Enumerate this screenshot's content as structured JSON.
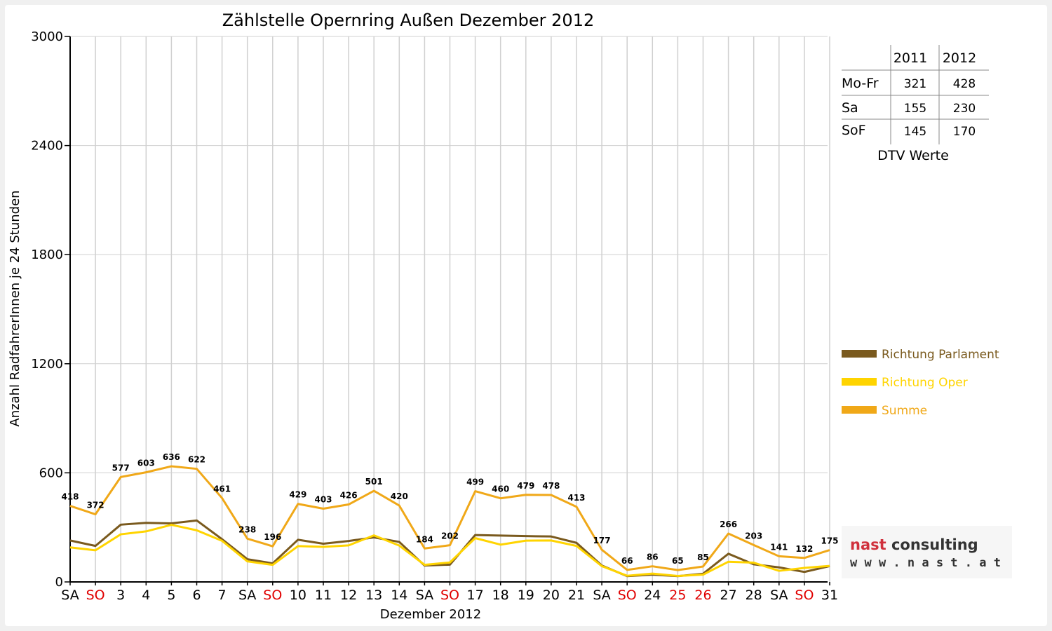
{
  "colors": {
    "parlament": "#7a5a1e",
    "oper": "#ffd400",
    "summe": "#f0a818",
    "weekend_label": "#e00000",
    "grid": "#d0d0d0",
    "logo_nast": "#d0303c"
  },
  "chart_data": {
    "type": "line",
    "title": "Zählstelle Opernring Außen Dezember 2012",
    "xlabel": "Dezember 2012",
    "ylabel": "Anzahl RadfahrerInnen je 24 Stunden",
    "ylim": [
      0,
      3000
    ],
    "yticks": [
      "0",
      "600",
      "1200",
      "1800",
      "2400",
      "3000"
    ],
    "grid": true,
    "legend_position": "right",
    "categories": [
      "SA",
      "SO",
      "3",
      "4",
      "5",
      "6",
      "7",
      "SA",
      "SO",
      "10",
      "11",
      "12",
      "13",
      "14",
      "SA",
      "SO",
      "17",
      "18",
      "19",
      "20",
      "21",
      "SA",
      "SO",
      "24",
      "25",
      "26",
      "27",
      "28",
      "SA",
      "SO",
      "31"
    ],
    "red_categories": [
      1,
      8,
      15,
      22,
      24,
      25,
      29
    ],
    "series": [
      {
        "name": "Richtung Parlament",
        "color_key": "parlament",
        "values": [
          228,
          198,
          315,
          325,
          322,
          338,
          235,
          125,
          102,
          232,
          210,
          225,
          245,
          220,
          90,
          95,
          258,
          255,
          252,
          250,
          215,
          90,
          32,
          40,
          32,
          45,
          155,
          97,
          80,
          55,
          87
        ]
      },
      {
        "name": "Richtung Oper",
        "color_key": "oper",
        "values": [
          190,
          174,
          262,
          278,
          314,
          284,
          226,
          113,
          94,
          197,
          193,
          201,
          256,
          200,
          94,
          107,
          241,
          205,
          227,
          228,
          198,
          87,
          34,
          46,
          33,
          40,
          111,
          106,
          61,
          77,
          88
        ]
      },
      {
        "name": "Summe",
        "color_key": "summe",
        "values": [
          418,
          372,
          577,
          603,
          636,
          622,
          461,
          238,
          196,
          429,
          403,
          426,
          501,
          420,
          184,
          202,
          499,
          460,
          479,
          478,
          413,
          177,
          66,
          86,
          65,
          85,
          266,
          203,
          141,
          132,
          175
        ]
      }
    ],
    "data_labels_series": "Summe"
  },
  "dtv_table": {
    "headers": [
      "",
      "2011",
      "2012"
    ],
    "rows": [
      {
        "label": "Mo-Fr",
        "v2011": "321",
        "v2012": "428"
      },
      {
        "label": "Sa",
        "v2011": "155",
        "v2012": "230"
      },
      {
        "label": "SoF",
        "v2011": "145",
        "v2012": "170"
      }
    ],
    "caption": "DTV Werte"
  },
  "logo": {
    "line1_a": "nast",
    "line1_b": " consulting",
    "line2": "w w w . n a s t . a t"
  }
}
